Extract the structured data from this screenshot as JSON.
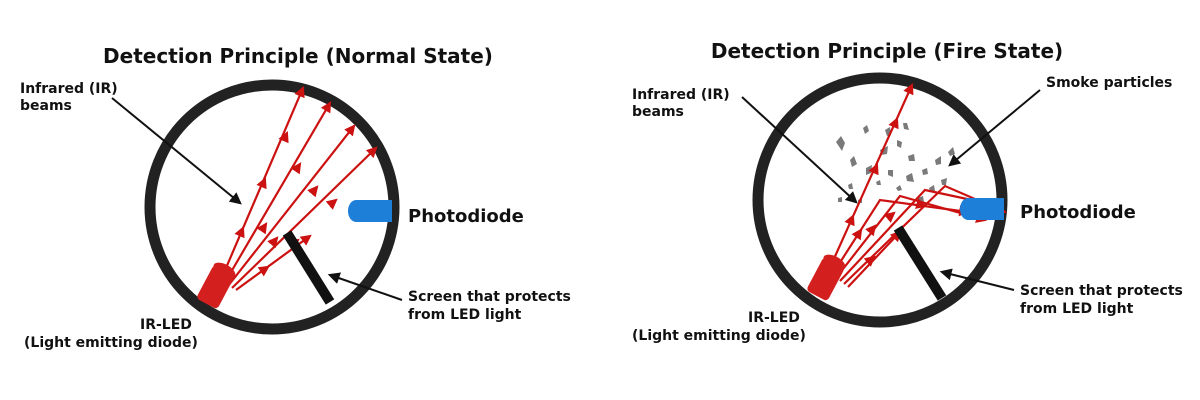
{
  "panels": [
    {
      "title": "Detection Principle (Normal State)",
      "ir_beams_label": [
        "Infrared (IR)",
        "beams"
      ],
      "photodiode_label": "Photodiode",
      "screen_label": [
        "Screen that protects",
        "from LED light"
      ],
      "led_label": [
        "IR-LED",
        "(Light emitting diode)"
      ]
    },
    {
      "title": "Detection Principle (Fire State)",
      "ir_beams_label": [
        "Infrared (IR)",
        "beams"
      ],
      "smoke_label": "Smoke particles",
      "photodiode_label": "Photodiode",
      "screen_label": [
        "Screen that protects",
        "from LED light"
      ],
      "led_label": [
        "IR-LED",
        "(Light emitting diode)"
      ]
    }
  ],
  "colors": {
    "ring": "#222222",
    "beam": "#cc1111",
    "led": "#d41f1f",
    "photodiode": "#1e7fd9",
    "screen": "#111111",
    "smoke": "#7a7a7a"
  }
}
